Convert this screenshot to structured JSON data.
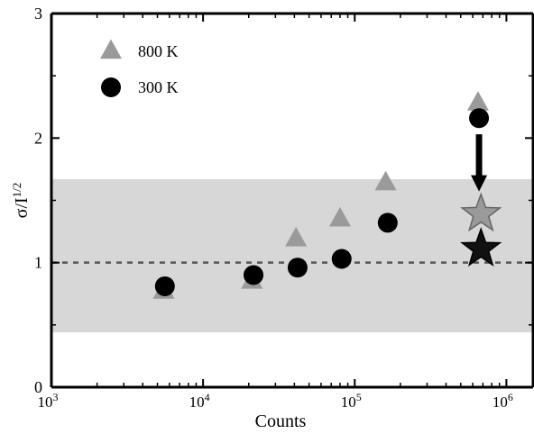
{
  "chart_data": {
    "type": "scatter",
    "xlabel": "Counts",
    "ylabel_main": "σ/I",
    "ylabel_exp": "1/2",
    "x_scale": "log",
    "xlim": [
      1000,
      1500000
    ],
    "ylim": [
      0,
      3
    ],
    "x_ticks": [
      {
        "value": 1000,
        "base": "10",
        "exp": "3"
      },
      {
        "value": 10000,
        "base": "10",
        "exp": "4"
      },
      {
        "value": 100000,
        "base": "10",
        "exp": "5"
      },
      {
        "value": 1000000,
        "base": "10",
        "exp": "6"
      }
    ],
    "y_ticks": [
      {
        "value": 0,
        "label": "0"
      },
      {
        "value": 1,
        "label": "1"
      },
      {
        "value": 2,
        "label": "2"
      },
      {
        "value": 3,
        "label": "3"
      }
    ],
    "reference_line": {
      "y": 1,
      "style": "dashed",
      "color": "#555555"
    },
    "band": {
      "y0": 0.44,
      "y1": 1.67,
      "color": "#d3d3d3"
    },
    "series": [
      {
        "name": "800 K",
        "marker": "triangle",
        "color": "#9a9a9a",
        "points": [
          {
            "x": 5500,
            "y": 0.77
          },
          {
            "x": 21000,
            "y": 0.85
          },
          {
            "x": 41000,
            "y": 1.19
          },
          {
            "x": 80000,
            "y": 1.35
          },
          {
            "x": 160000,
            "y": 1.64
          },
          {
            "x": 650000,
            "y": 2.28
          }
        ]
      },
      {
        "name": "300 K",
        "marker": "circle",
        "color": "#000000",
        "points": [
          {
            "x": 5600,
            "y": 0.81
          },
          {
            "x": 21500,
            "y": 0.9
          },
          {
            "x": 42000,
            "y": 0.96
          },
          {
            "x": 82000,
            "y": 1.03
          },
          {
            "x": 165000,
            "y": 1.32
          },
          {
            "x": 660000,
            "y": 2.16
          }
        ]
      }
    ],
    "star_points": [
      {
        "x": 680000,
        "y": 1.39,
        "color": "#9a9a9a"
      },
      {
        "x": 680000,
        "y": 1.11,
        "color": "#111111"
      }
    ],
    "arrow": {
      "x": 660000,
      "y_from": 2.03,
      "y_to": 1.6
    },
    "legend": {
      "placement": "top-left",
      "entries": [
        "800 K",
        "300 K"
      ]
    },
    "grid": false
  }
}
